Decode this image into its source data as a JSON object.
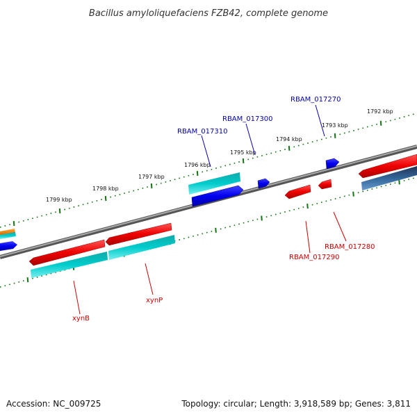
{
  "title": "Bacillus amyloliquefaciens FZB42, complete genome",
  "footer": {
    "accession": "Accession: NC_009725",
    "summary": "Topology: circular; Length: 3,918,589 bp; Genes: 3,811"
  },
  "scale_labels": [
    "1799 kbp",
    "1798 kbp",
    "1797 kbp",
    "1796 kbp",
    "1795 kbp",
    "1794 kbp",
    "1793 kbp",
    "1792 kbp"
  ],
  "gene_labels": {
    "forward": [
      "RBAM_017310",
      "RBAM_017300",
      "RBAM_017270"
    ],
    "reverse": [
      "xynB",
      "xynP",
      "RBAM_017290",
      "RBAM_017280"
    ]
  },
  "colors": {
    "forward_label": "#0000aa",
    "reverse_label": "#cc0000",
    "forward_gene": "#0000ee",
    "reverse_gene": "#ee0000",
    "cds": "#00cccc",
    "cds_dark": "#336699",
    "misc": "#ee8800",
    "backbone": "#777777",
    "ticks": "#117711"
  }
}
